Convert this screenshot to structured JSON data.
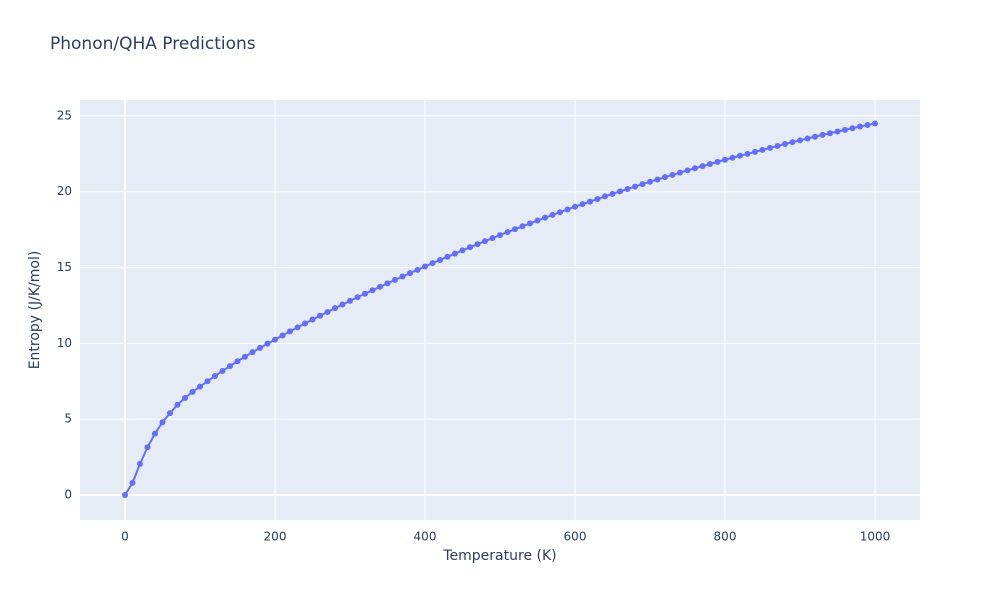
{
  "chart_data": {
    "type": "line",
    "title": "Phonon/QHA Predictions",
    "x_label": "Temperature (K)",
    "y_label": "Entropy (J/K/mol)",
    "x": [
      0,
      10,
      20,
      30,
      40,
      50,
      60,
      70,
      80,
      90,
      100,
      110,
      120,
      130,
      140,
      150,
      160,
      170,
      180,
      190,
      200,
      210,
      220,
      230,
      240,
      250,
      260,
      270,
      280,
      290,
      300,
      310,
      320,
      330,
      340,
      350,
      360,
      370,
      380,
      390,
      400,
      410,
      420,
      430,
      440,
      450,
      460,
      470,
      480,
      490,
      500,
      510,
      520,
      530,
      540,
      550,
      560,
      570,
      580,
      590,
      600,
      610,
      620,
      630,
      640,
      650,
      660,
      670,
      680,
      690,
      700,
      710,
      720,
      730,
      740,
      750,
      760,
      770,
      780,
      790,
      800,
      810,
      820,
      830,
      840,
      850,
      860,
      870,
      880,
      890,
      900,
      910,
      920,
      930,
      940,
      950,
      960,
      970,
      980,
      990,
      1000
    ],
    "values": [
      0,
      0.8,
      2.05,
      3.15,
      4.05,
      4.8,
      5.4,
      5.95,
      6.4,
      6.8,
      7.15,
      7.5,
      7.85,
      8.18,
      8.5,
      8.82,
      9.12,
      9.42,
      9.7,
      9.98,
      10.25,
      10.52,
      10.79,
      11.05,
      11.31,
      11.57,
      11.82,
      12.07,
      12.32,
      12.56,
      12.8,
      13.04,
      13.27,
      13.5,
      13.73,
      13.96,
      14.19,
      14.41,
      14.63,
      14.85,
      15.07,
      15.29,
      15.5,
      15.71,
      15.92,
      16.13,
      16.34,
      16.54,
      16.74,
      16.94,
      17.14,
      17.34,
      17.53,
      17.72,
      17.91,
      18.1,
      18.29,
      18.47,
      18.65,
      18.83,
      19.01,
      19.18,
      19.35,
      19.52,
      19.69,
      19.86,
      20.02,
      20.18,
      20.34,
      20.5,
      20.66,
      20.81,
      20.96,
      21.11,
      21.26,
      21.41,
      21.55,
      21.69,
      21.83,
      21.97,
      22.11,
      22.24,
      22.37,
      22.5,
      22.63,
      22.76,
      22.89,
      23.02,
      23.15,
      23.27,
      23.39,
      23.51,
      23.63,
      23.75,
      23.86,
      23.97,
      24.08,
      24.19,
      24.3,
      24.4,
      24.5
    ],
    "color": "#636efa",
    "xlim": [
      -60,
      1060
    ],
    "xticks": [
      0,
      200,
      400,
      600,
      800,
      1000
    ],
    "ylim": [
      -1.65,
      26.05
    ],
    "yticks": [
      0,
      5,
      10,
      15,
      20,
      25
    ],
    "grid": true
  }
}
